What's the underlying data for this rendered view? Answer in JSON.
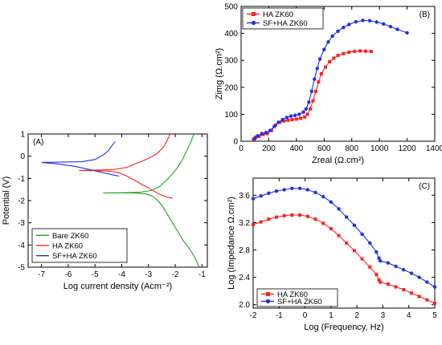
{
  "chart_data": [
    {
      "type": "line",
      "panel_label": "(A)",
      "xlabel": "Log current density (Acm⁻²)",
      "ylabel": "Potential (V)",
      "xlim": [
        -7.5,
        -0.8
      ],
      "ylim": [
        -5,
        1
      ],
      "xticks": [
        -7,
        -6,
        -5,
        -4,
        -3,
        -2,
        -1
      ],
      "yticks": [
        1,
        0,
        -1,
        -2,
        -3,
        -4,
        -5
      ],
      "legend_position": "bottom-left",
      "series": [
        {
          "name": "Bare ZK60",
          "color": "#22a022",
          "points": [
            [
              -1.1,
              -5.0
            ],
            [
              -1.25,
              -4.6
            ],
            [
              -1.45,
              -4.2
            ],
            [
              -1.7,
              -3.8
            ],
            [
              -1.95,
              -3.3
            ],
            [
              -2.2,
              -2.8
            ],
            [
              -2.45,
              -2.3
            ],
            [
              -2.65,
              -2.0
            ],
            [
              -2.85,
              -1.8
            ],
            [
              -3.1,
              -1.7
            ],
            [
              -3.5,
              -1.66
            ],
            [
              -4.0,
              -1.65
            ],
            [
              -4.4,
              -1.65
            ],
            [
              -4.7,
              -1.66
            ],
            [
              -4.0,
              -1.65
            ],
            [
              -3.3,
              -1.62
            ],
            [
              -2.9,
              -1.55
            ],
            [
              -2.6,
              -1.38
            ],
            [
              -2.3,
              -1.05
            ],
            [
              -2.0,
              -0.65
            ],
            [
              -1.75,
              -0.2
            ],
            [
              -1.55,
              0.3
            ],
            [
              -1.4,
              0.7
            ],
            [
              -1.3,
              1.0
            ]
          ]
        },
        {
          "name": "HA ZK60",
          "color": "#ff2020",
          "points": [
            [
              -2.1,
              -1.9
            ],
            [
              -2.3,
              -1.85
            ],
            [
              -2.6,
              -1.7
            ],
            [
              -2.9,
              -1.5
            ],
            [
              -3.2,
              -1.3
            ],
            [
              -3.5,
              -1.1
            ],
            [
              -3.8,
              -0.9
            ],
            [
              -4.1,
              -0.75
            ],
            [
              -4.4,
              -0.68
            ],
            [
              -5.0,
              -0.65
            ],
            [
              -5.6,
              -0.64
            ],
            [
              -5.0,
              -0.63
            ],
            [
              -4.3,
              -0.6
            ],
            [
              -3.8,
              -0.5
            ],
            [
              -3.4,
              -0.3
            ],
            [
              -3.0,
              -0.1
            ],
            [
              -2.7,
              0.1
            ],
            [
              -2.45,
              0.4
            ],
            [
              -2.3,
              0.7
            ],
            [
              -2.2,
              1.0
            ]
          ]
        },
        {
          "name": "SF+HA ZK60",
          "color": "#2030e0",
          "points": [
            [
              -4.1,
              -0.9
            ],
            [
              -4.3,
              -0.85
            ],
            [
              -4.7,
              -0.75
            ],
            [
              -5.2,
              -0.6
            ],
            [
              -5.8,
              -0.45
            ],
            [
              -6.4,
              -0.35
            ],
            [
              -7.0,
              -0.28
            ],
            [
              -6.3,
              -0.27
            ],
            [
              -5.5,
              -0.25
            ],
            [
              -5.0,
              -0.15
            ],
            [
              -4.7,
              0.05
            ],
            [
              -4.5,
              0.25
            ],
            [
              -4.35,
              0.5
            ],
            [
              -4.25,
              0.65
            ]
          ]
        }
      ]
    },
    {
      "type": "line",
      "panel_label": "(B)",
      "xlabel": "Zreal (Ω.cm²)",
      "ylabel": "Zimg (Ω.cm²)",
      "xlim": [
        0,
        1400
      ],
      "ylim": [
        0,
        500
      ],
      "xticks": [
        0,
        200,
        400,
        600,
        800,
        1000,
        1200,
        1400
      ],
      "yticks": [
        0,
        100,
        200,
        300,
        400,
        500
      ],
      "legend_position": "top-left",
      "series": [
        {
          "name": "HA ZK60",
          "color": "#ff2020",
          "marker": "square",
          "points": [
            [
              90,
              8
            ],
            [
              105,
              15
            ],
            [
              130,
              18
            ],
            [
              160,
              25
            ],
            [
              190,
              28
            ],
            [
              220,
              40
            ],
            [
              250,
              60
            ],
            [
              280,
              70
            ],
            [
              310,
              75
            ],
            [
              340,
              78
            ],
            [
              370,
              80
            ],
            [
              400,
              82
            ],
            [
              430,
              85
            ],
            [
              460,
              90
            ],
            [
              480,
              100
            ],
            [
              500,
              120
            ],
            [
              520,
              150
            ],
            [
              540,
              185
            ],
            [
              560,
              220
            ],
            [
              580,
              250
            ],
            [
              610,
              275
            ],
            [
              640,
              295
            ],
            [
              670,
              308
            ],
            [
              700,
              318
            ],
            [
              740,
              325
            ],
            [
              780,
              330
            ],
            [
              820,
              333
            ],
            [
              860,
              335
            ],
            [
              900,
              334
            ],
            [
              940,
              333
            ]
          ]
        },
        {
          "name": "SF+HA ZK60",
          "color": "#2030e0",
          "marker": "circle",
          "points": [
            [
              100,
              10
            ],
            [
              120,
              20
            ],
            [
              150,
              28
            ],
            [
              180,
              32
            ],
            [
              210,
              40
            ],
            [
              240,
              55
            ],
            [
              270,
              70
            ],
            [
              300,
              80
            ],
            [
              330,
              88
            ],
            [
              360,
              93
            ],
            [
              390,
              96
            ],
            [
              420,
              100
            ],
            [
              450,
              108
            ],
            [
              470,
              120
            ],
            [
              490,
              145
            ],
            [
              510,
              185
            ],
            [
              530,
              230
            ],
            [
              550,
              270
            ],
            [
              570,
              305
            ],
            [
              600,
              340
            ],
            [
              630,
              368
            ],
            [
              660,
              390
            ],
            [
              700,
              408
            ],
            [
              740,
              422
            ],
            [
              780,
              433
            ],
            [
              830,
              443
            ],
            [
              880,
              448
            ],
            [
              930,
              447
            ],
            [
              980,
              442
            ],
            [
              1030,
              435
            ],
            [
              1080,
              425
            ],
            [
              1130,
              415
            ],
            [
              1200,
              402
            ]
          ]
        }
      ]
    },
    {
      "type": "line",
      "panel_label": "(C)",
      "xlabel": "Log (Frequency, Hz)",
      "ylabel": "Log (Impedance Ω.cm²)",
      "xlim": [
        -2,
        5
      ],
      "ylim": [
        1.95,
        3.85
      ],
      "xticks": [
        -2,
        -1,
        0,
        1,
        2,
        3,
        4,
        5
      ],
      "yticks": [
        2.0,
        2.4,
        2.8,
        3.2,
        3.6
      ],
      "ytick_labels": [
        "2.0",
        "2.4",
        "2.8",
        "3.2",
        "3.6"
      ],
      "legend_position": "bottom-left",
      "series": [
        {
          "name": "HA ZK60",
          "color": "#ff2020",
          "marker": "square",
          "points": [
            [
              -2,
              3.17
            ],
            [
              -1.7,
              3.21
            ],
            [
              -1.4,
              3.25
            ],
            [
              -1.1,
              3.28
            ],
            [
              -0.8,
              3.3
            ],
            [
              -0.5,
              3.31
            ],
            [
              -0.2,
              3.31
            ],
            [
              0.1,
              3.29
            ],
            [
              0.4,
              3.25
            ],
            [
              0.7,
              3.19
            ],
            [
              1.0,
              3.11
            ],
            [
              1.3,
              3.01
            ],
            [
              1.6,
              2.9
            ],
            [
              1.9,
              2.79
            ],
            [
              2.2,
              2.67
            ],
            [
              2.5,
              2.55
            ],
            [
              2.75,
              2.44
            ],
            [
              2.85,
              2.36
            ],
            [
              2.9,
              2.33
            ],
            [
              3.2,
              2.3
            ],
            [
              3.5,
              2.26
            ],
            [
              3.8,
              2.22
            ],
            [
              4.1,
              2.17
            ],
            [
              4.4,
              2.12
            ],
            [
              4.7,
              2.07
            ],
            [
              5.0,
              2.02
            ]
          ]
        },
        {
          "name": "SF+HA ZK60",
          "color": "#2030e0",
          "marker": "circle",
          "points": [
            [
              -2,
              3.55
            ],
            [
              -1.7,
              3.59
            ],
            [
              -1.4,
              3.63
            ],
            [
              -1.1,
              3.66
            ],
            [
              -0.8,
              3.68
            ],
            [
              -0.5,
              3.7
            ],
            [
              -0.2,
              3.7
            ],
            [
              0.1,
              3.68
            ],
            [
              0.4,
              3.64
            ],
            [
              0.7,
              3.58
            ],
            [
              1.0,
              3.5
            ],
            [
              1.3,
              3.4
            ],
            [
              1.6,
              3.28
            ],
            [
              1.9,
              3.16
            ],
            [
              2.2,
              3.03
            ],
            [
              2.5,
              2.9
            ],
            [
              2.75,
              2.77
            ],
            [
              2.85,
              2.68
            ],
            [
              2.9,
              2.64
            ],
            [
              3.2,
              2.61
            ],
            [
              3.5,
              2.56
            ],
            [
              3.8,
              2.51
            ],
            [
              4.1,
              2.46
            ],
            [
              4.4,
              2.4
            ],
            [
              4.7,
              2.33
            ],
            [
              5.0,
              2.26
            ]
          ]
        }
      ]
    }
  ]
}
